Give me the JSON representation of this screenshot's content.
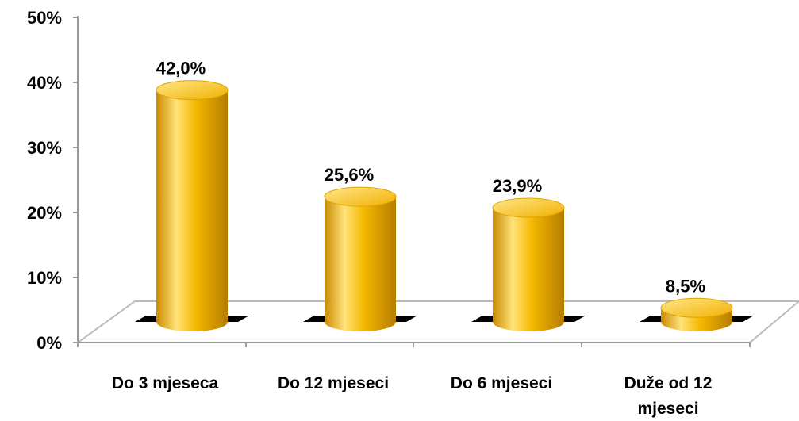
{
  "chart_data": {
    "type": "bar",
    "categories": [
      "Do 3 mjeseca",
      "Do 12 mjeseci",
      "Do 6 mjeseci",
      "Duže od 12 mjeseci"
    ],
    "values": [
      42.0,
      25.6,
      23.9,
      8.5
    ],
    "value_labels": [
      "42,0%",
      "25,6%",
      "23,9%",
      "8,5%"
    ],
    "yticks": [
      "0%",
      "10%",
      "20%",
      "30%",
      "40%",
      "50%"
    ],
    "ylim": [
      0,
      50
    ],
    "grid": false,
    "legend": "none",
    "bar_style": "3d-cylinder",
    "colors": {
      "bar_main": "#f5b800",
      "bar_light": "#ffe27a",
      "bar_dark": "#c98a00",
      "bar_top": "#ffd84a",
      "floor_line": "#bbbbbb",
      "axis": "#999999"
    }
  }
}
